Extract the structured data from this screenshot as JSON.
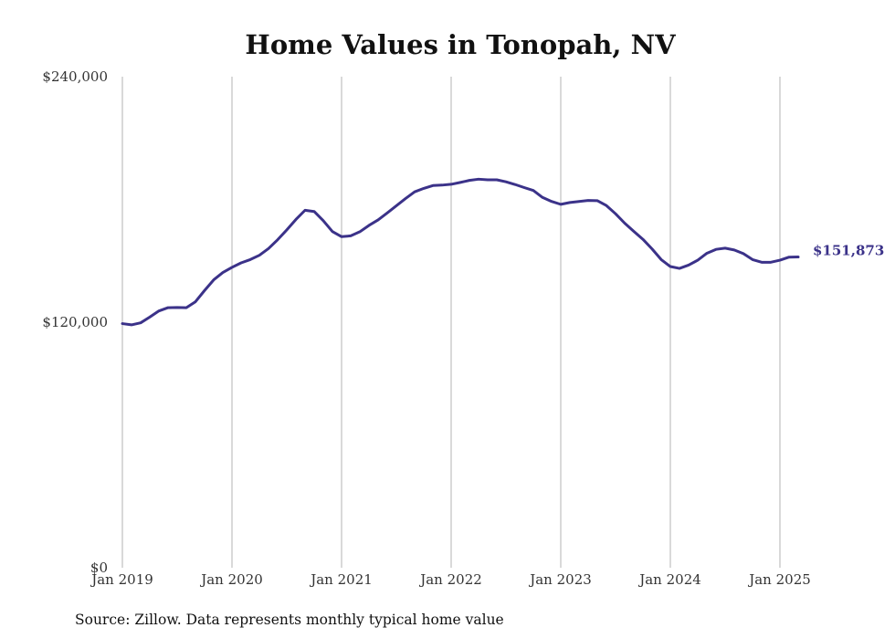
{
  "chart_data": {
    "type": "line",
    "title": "Home Values in Tonopah, NV",
    "xlabel": "",
    "ylabel": "",
    "source": "Source: Zillow. Data represents monthly typical home value",
    "line_color": "#3b3289",
    "grid": "vertical lines at Jan of each year",
    "ylim": [
      0,
      240000
    ],
    "y_ticks": [
      {
        "value": 0,
        "label": "$0"
      },
      {
        "value": 120000,
        "label": "$120,000"
      },
      {
        "value": 240000,
        "label": "$240,000"
      }
    ],
    "x_ticks": [
      {
        "value": "2019-01",
        "label": "Jan 2019"
      },
      {
        "value": "2020-01",
        "label": "Jan 2020"
      },
      {
        "value": "2021-01",
        "label": "Jan 2021"
      },
      {
        "value": "2022-01",
        "label": "Jan 2022"
      },
      {
        "value": "2023-01",
        "label": "Jan 2023"
      },
      {
        "value": "2024-01",
        "label": "Jan 2024"
      },
      {
        "value": "2025-01",
        "label": "Jan 2025"
      }
    ],
    "end_label": "$151,873",
    "series": [
      {
        "x": [
          "2019-01",
          "2019-02",
          "2019-03",
          "2019-04",
          "2019-05",
          "2019-06",
          "2019-07",
          "2019-08",
          "2019-09",
          "2019-10",
          "2019-11",
          "2019-12",
          "2020-01",
          "2020-02",
          "2020-03",
          "2020-04",
          "2020-05",
          "2020-06",
          "2020-07",
          "2020-08",
          "2020-09",
          "2020-10",
          "2020-11",
          "2020-12",
          "2021-01",
          "2021-02",
          "2021-03",
          "2021-04",
          "2021-05",
          "2021-06",
          "2021-07",
          "2021-08",
          "2021-09",
          "2021-10",
          "2021-11",
          "2021-12",
          "2022-01",
          "2022-02",
          "2022-03",
          "2022-04",
          "2022-05",
          "2022-06",
          "2022-07",
          "2022-08",
          "2022-09",
          "2022-10",
          "2022-11",
          "2022-12",
          "2023-01",
          "2023-02",
          "2023-03",
          "2023-04",
          "2023-05",
          "2023-06",
          "2023-07",
          "2023-08",
          "2023-09",
          "2023-10",
          "2023-11",
          "2023-12",
          "2024-01",
          "2024-02",
          "2024-03",
          "2024-04",
          "2024-05",
          "2024-06",
          "2024-07",
          "2024-08",
          "2024-09",
          "2024-10",
          "2024-11",
          "2024-12",
          "2025-01",
          "2025-02",
          "2025-03"
        ],
        "values": [
          119300,
          118700,
          119700,
          122500,
          125500,
          127100,
          127200,
          127100,
          130000,
          135500,
          140700,
          144300,
          146800,
          149000,
          150600,
          152700,
          156000,
          160300,
          165100,
          170200,
          174700,
          174100,
          169600,
          164300,
          161800,
          162200,
          164200,
          167300,
          170000,
          173400,
          176900,
          180400,
          183700,
          185400,
          186800,
          187000,
          187400,
          188300,
          189300,
          189900,
          189600,
          189600,
          188600,
          187300,
          185800,
          184400,
          181000,
          179000,
          177600,
          178500,
          179000,
          179500,
          179400,
          177000,
          173000,
          168400,
          164400,
          160500,
          155800,
          150600,
          147200,
          146300,
          147900,
          150300,
          153700,
          155600,
          156200,
          155300,
          153500,
          150600,
          149300,
          149300,
          150300,
          151800,
          151873
        ]
      }
    ]
  }
}
